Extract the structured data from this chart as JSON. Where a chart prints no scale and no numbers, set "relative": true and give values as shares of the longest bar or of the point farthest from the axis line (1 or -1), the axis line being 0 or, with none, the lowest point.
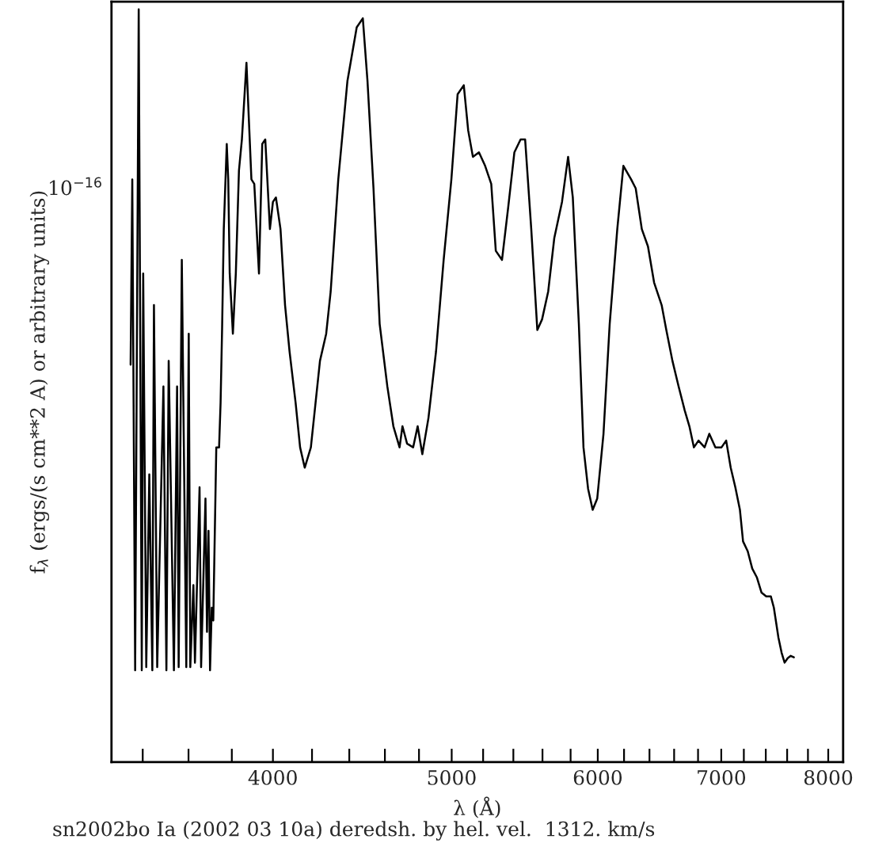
{
  "chart_data": {
    "type": "line",
    "relative": true,
    "xlabel": "λ (Å)",
    "ylabel": "f$_{λ}$ (ergs/(s cm**2 A) or arbitrary units)",
    "annotations": [
      "10$^{−16}$",
      "sn2002bo Ia (2002 03 10a) deredsh. by hel. vel.  1312. km/s"
    ],
    "log": "x",
    "grid": false,
    "legend": false,
    "xlim": [
      3270,
      8150
    ],
    "xticks": [
      {
        "value": 3400,
        "label": null
      },
      {
        "value": 3600,
        "label": null
      },
      {
        "value": 3800,
        "label": null
      },
      4000,
      {
        "value": 4200,
        "label": null
      },
      {
        "value": 4400,
        "label": null
      },
      {
        "value": 4600,
        "label": null
      },
      {
        "value": 4800,
        "label": null
      },
      5000,
      {
        "value": 5200,
        "label": null
      },
      {
        "value": 5400,
        "label": null
      },
      {
        "value": 5600,
        "label": null
      },
      {
        "value": 5800,
        "label": null
      },
      6000,
      {
        "value": 6200,
        "label": null
      },
      {
        "value": 6400,
        "label": null
      },
      {
        "value": 6600,
        "label": null
      },
      {
        "value": 6800,
        "label": null
      },
      7000,
      {
        "value": 7200,
        "label": null
      },
      {
        "value": 7400,
        "label": null
      },
      {
        "value": 7600,
        "label": null
      },
      {
        "value": 7800,
        "label": null
      },
      8000
    ],
    "series": [
      {
        "color": "#000000",
        "x": [
          3349,
          3356,
          3368,
          3383,
          3396,
          3402,
          3415,
          3428,
          3441,
          3448,
          3462,
          3489,
          3502,
          3512,
          3535,
          3549,
          3556,
          3570,
          3590,
          3601,
          3608,
          3622,
          3629,
          3650,
          3657,
          3677,
          3684,
          3691,
          3698,
          3706,
          3713,
          3727,
          3740,
          3747,
          3754,
          3762,
          3776,
          3783,
          3790,
          3805,
          3819,
          3834,
          3848,
          3870,
          3894,
          3908,
          3931,
          3947,
          3962,
          3985,
          4000,
          4015,
          4038,
          4061,
          4084,
          4115,
          4138,
          4162,
          4194,
          4242,
          4275,
          4299,
          4340,
          4390,
          4441,
          4475,
          4501,
          4535,
          4570,
          4614,
          4649,
          4685,
          4702,
          4729,
          4765,
          4792,
          4820,
          4857,
          4903,
          4950,
          4998,
          5037,
          5076,
          5104,
          5134,
          5173,
          5213,
          5253,
          5283,
          5324,
          5366,
          5407,
          5449,
          5480,
          5522,
          5564,
          5597,
          5640,
          5683,
          5738,
          5782,
          5816,
          5860,
          5894,
          5928,
          5962,
          5996,
          6043,
          6090,
          6148,
          6195,
          6255,
          6291,
          6339,
          6388,
          6437,
          6498,
          6536,
          6586,
          6637,
          6688,
          6727,
          6765,
          6804,
          6856,
          6896,
          6949,
          7002,
          7043,
          7083,
          7124,
          7165,
          7193,
          7235,
          7276,
          7319,
          7361,
          7404,
          7447,
          7475,
          7518,
          7548,
          7576,
          7605,
          7634,
          7664
        ],
        "values": [
          0.528,
          0.774,
          0.122,
          1,
          0.122,
          0.649,
          0.126,
          0.382,
          0.122,
          0.607,
          0.126,
          0.499,
          0.122,
          0.533,
          0.122,
          0.499,
          0.126,
          0.667,
          0.126,
          0.569,
          0.126,
          0.235,
          0.132,
          0.365,
          0.126,
          0.35,
          0.173,
          0.307,
          0.122,
          0.205,
          0.188,
          0.418,
          0.418,
          0.477,
          0.574,
          0.708,
          0.821,
          0.774,
          0.649,
          0.569,
          0.649,
          0.786,
          0.827,
          0.929,
          0.774,
          0.768,
          0.649,
          0.821,
          0.827,
          0.708,
          0.744,
          0.75,
          0.708,
          0.607,
          0.545,
          0.477,
          0.418,
          0.391,
          0.418,
          0.533,
          0.569,
          0.625,
          0.774,
          0.905,
          0.976,
          0.988,
          0.905,
          0.762,
          0.582,
          0.499,
          0.446,
          0.418,
          0.446,
          0.423,
          0.418,
          0.446,
          0.409,
          0.457,
          0.545,
          0.667,
          0.774,
          0.887,
          0.899,
          0.839,
          0.804,
          0.81,
          0.792,
          0.768,
          0.679,
          0.667,
          0.738,
          0.81,
          0.827,
          0.827,
          0.708,
          0.574,
          0.588,
          0.625,
          0.696,
          0.744,
          0.804,
          0.75,
          0.582,
          0.418,
          0.363,
          0.335,
          0.35,
          0.436,
          0.582,
          0.708,
          0.792,
          0.774,
          0.762,
          0.708,
          0.685,
          0.637,
          0.607,
          0.574,
          0.533,
          0.499,
          0.467,
          0.446,
          0.418,
          0.427,
          0.418,
          0.436,
          0.418,
          0.418,
          0.427,
          0.391,
          0.365,
          0.335,
          0.293,
          0.28,
          0.257,
          0.245,
          0.225,
          0.22,
          0.22,
          0.205,
          0.165,
          0.145,
          0.132,
          0.138,
          0.141,
          0.139
        ]
      }
    ]
  }
}
